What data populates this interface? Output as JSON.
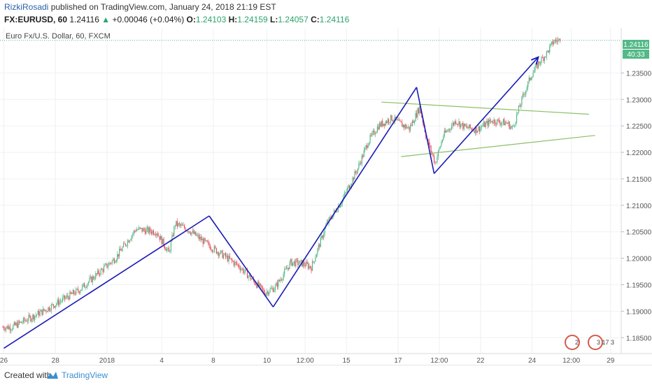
{
  "header": {
    "author": "RizkiRosadi",
    "published_text": " published on TradingView.com, January 24, 2018 21:19 EST",
    "symbol": "FX:EURUSD, 60",
    "last": "1.24116",
    "change_arrow": "▲",
    "change": "+0.00046 (+0.04%)",
    "o_label": "O:",
    "o_value": "1.24103",
    "h_label": "H:",
    "h_value": "1.24159",
    "l_label": "L:",
    "l_value": "1.24057",
    "c_label": "C:",
    "c_value": "1.24116"
  },
  "chart": {
    "instrument_label": "Euro Fx/U.S. Dollar, 60, FXCM",
    "last_price_label": "1.24116",
    "countdown_label": "40:33",
    "bottom_badges": [
      "2",
      "3 17 3"
    ]
  },
  "chart_data": {
    "type": "candlestick",
    "title": "Euro Fx/U.S. Dollar, 60, FXCM",
    "colors": {
      "up": "#53b987",
      "down": "#eb4d5c",
      "trend_line": "#1a1ab8",
      "triangle_line": "#8cbf6a",
      "grid": "#eef0f3",
      "last_price_line": "#53b987"
    },
    "grid": true,
    "ylim": [
      1.182,
      1.2435
    ],
    "y_ticks": [
      1.185,
      1.19,
      1.195,
      1.2,
      1.205,
      1.21,
      1.215,
      1.22,
      1.225,
      1.23,
      1.235
    ],
    "y_tick_labels": [
      "1.18500",
      "1.19000",
      "1.19500",
      "1.20000",
      "1.20500",
      "1.21000",
      "1.21500",
      "1.22000",
      "1.22500",
      "1.23000",
      "1.23500"
    ],
    "x_tick_labels": [
      "26",
      "28",
      "2018",
      "4",
      "8",
      "10",
      "12:00",
      "15",
      "17",
      "12:00",
      "22",
      "24",
      "12:00",
      "29"
    ],
    "bar_count": 385,
    "price_path": [
      [
        0,
        1.187
      ],
      [
        10,
        1.187
      ],
      [
        40,
        1.19
      ],
      [
        75,
        1.194
      ],
      [
        110,
        1.2
      ],
      [
        130,
        1.2055
      ],
      [
        150,
        1.205
      ],
      [
        162,
        1.201
      ],
      [
        168,
        1.2065
      ],
      [
        180,
        1.2055
      ],
      [
        200,
        1.2025
      ],
      [
        230,
        1.1985
      ],
      [
        255,
        1.1935
      ],
      [
        265,
        1.1945
      ],
      [
        280,
        1.1992
      ],
      [
        292,
        1.199
      ],
      [
        300,
        1.1983
      ],
      [
        315,
        1.2065
      ],
      [
        330,
        1.211
      ],
      [
        345,
        1.217
      ],
      [
        355,
        1.222
      ],
      [
        365,
        1.225
      ],
      [
        378,
        1.2265
      ],
      [
        385,
        1.2255
      ],
      [
        395,
        1.2245
      ],
      [
        405,
        1.2285
      ],
      [
        412,
        1.2225
      ],
      [
        420,
        1.218
      ],
      [
        428,
        1.2232
      ],
      [
        440,
        1.226
      ],
      [
        448,
        1.2248
      ],
      [
        460,
        1.2243
      ],
      [
        475,
        1.226
      ],
      [
        490,
        1.2255
      ],
      [
        495,
        1.2245
      ],
      [
        505,
        1.2305
      ],
      [
        513,
        1.2345
      ],
      [
        520,
        1.2368
      ],
      [
        528,
        1.2387
      ],
      [
        535,
        1.241
      ],
      [
        540,
        1.24116
      ]
    ],
    "trend_lines": [
      {
        "points": [
          [
            1,
            1.183
          ],
          [
            200,
            1.208
          ]
        ]
      },
      {
        "points": [
          [
            200,
            1.208
          ],
          [
            262,
            1.1908
          ]
        ]
      },
      {
        "points": [
          [
            262,
            1.1908
          ],
          [
            401,
            1.2323
          ]
        ]
      },
      {
        "points": [
          [
            401,
            1.2323
          ],
          [
            418,
            1.216
          ]
        ]
      },
      {
        "points": [
          [
            418,
            1.216
          ],
          [
            519,
            1.238
          ]
        ]
      }
    ],
    "triangle_lines": [
      {
        "points": [
          [
            367,
            1.2295
          ],
          [
            568,
            1.2272
          ]
        ]
      },
      {
        "points": [
          [
            386,
            1.2192
          ],
          [
            574,
            1.2232
          ]
        ]
      }
    ],
    "last_price": 1.24116
  }
}
